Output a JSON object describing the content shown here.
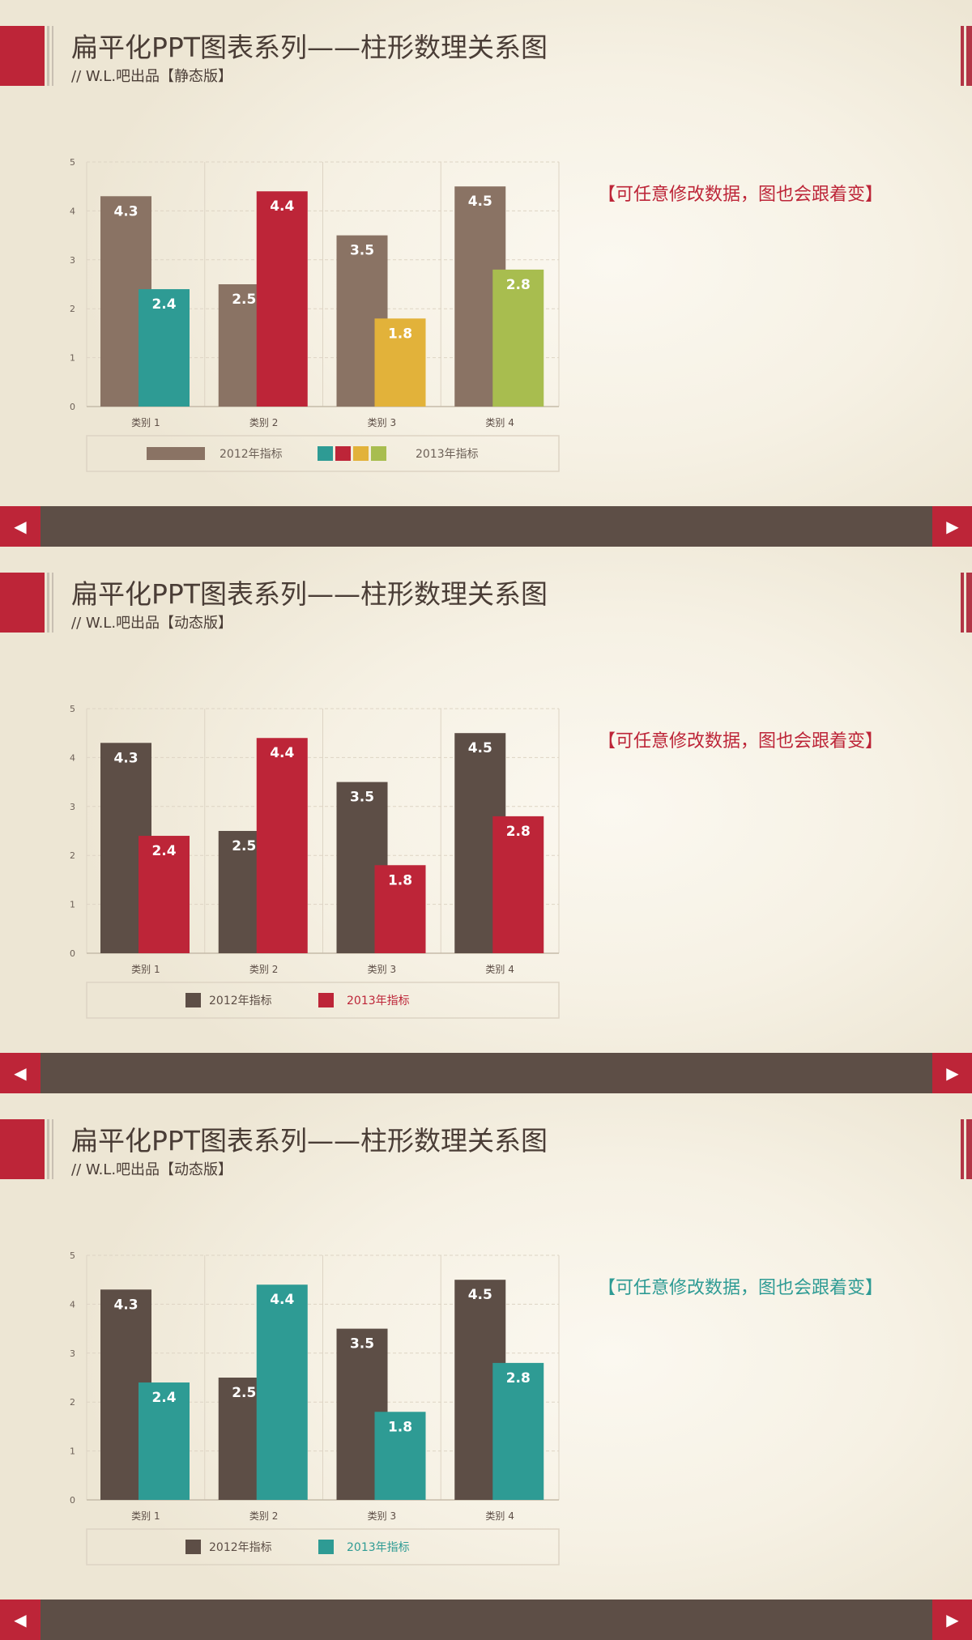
{
  "slides": [
    {
      "title": "扁平化PPT图表系列——柱形数理关系图",
      "subtitle": "// W.L.吧出品【静态版】",
      "note": "【可任意修改数据，图也会跟着变】",
      "note_color": "#bd2538",
      "chart_data": {
        "type": "bar",
        "categories": [
          "类别 1",
          "类别 2",
          "类别 3",
          "类别 4"
        ],
        "ylim": [
          0,
          5
        ],
        "yticks": [
          "0",
          "1",
          "2",
          "3",
          "4",
          "5"
        ],
        "grid": true,
        "legend_position": "bottom",
        "series": [
          {
            "name": "2012年指标",
            "values": [
              4.3,
              2.5,
              3.5,
              4.5
            ],
            "value_labels": [
              "4.3",
              "2.5",
              "3.5",
              "4.5"
            ],
            "colors": [
              "#8a7364",
              "#8a7364",
              "#8a7364",
              "#8a7364"
            ]
          },
          {
            "name": "2013年指标",
            "values": [
              2.4,
              4.4,
              1.8,
              2.8
            ],
            "value_labels": [
              "2.4",
              "4.4",
              "1.8",
              "2.8"
            ],
            "colors": [
              "#2e9b94",
              "#bd2538",
              "#e2b23a",
              "#a8bd4f"
            ]
          }
        ],
        "legend_text_color": "#6d6158"
      }
    },
    {
      "title": "扁平化PPT图表系列——柱形数理关系图",
      "subtitle": "// W.L.吧出品【动态版】",
      "note": "【可任意修改数据，图也会跟着变】",
      "note_color": "#bd2538",
      "chart_data": {
        "type": "bar",
        "categories": [
          "类别 1",
          "类别 2",
          "类别 3",
          "类别 4"
        ],
        "ylim": [
          0,
          5
        ],
        "yticks": [
          "0",
          "1",
          "2",
          "3",
          "4",
          "5"
        ],
        "grid": true,
        "legend_position": "bottom",
        "series": [
          {
            "name": "2012年指标",
            "values": [
              4.3,
              2.5,
              3.5,
              4.5
            ],
            "value_labels": [
              "4.3",
              "2.5",
              "3.5",
              "4.5"
            ],
            "colors": [
              "#5d4e46",
              "#5d4e46",
              "#5d4e46",
              "#5d4e46"
            ]
          },
          {
            "name": "2013年指标",
            "values": [
              2.4,
              4.4,
              1.8,
              2.8
            ],
            "value_labels": [
              "2.4",
              "4.4",
              "1.8",
              "2.8"
            ],
            "colors": [
              "#bd2538",
              "#bd2538",
              "#bd2538",
              "#bd2538"
            ]
          }
        ],
        "legend_text_color": "#bd2538"
      }
    },
    {
      "title": "扁平化PPT图表系列——柱形数理关系图",
      "subtitle": "// W.L.吧出品【动态版】",
      "note": "【可任意修改数据，图也会跟着变】",
      "note_color": "#2e9b94",
      "chart_data": {
        "type": "bar",
        "categories": [
          "类别 1",
          "类别 2",
          "类别 3",
          "类别 4"
        ],
        "ylim": [
          0,
          5
        ],
        "yticks": [
          "0",
          "1",
          "2",
          "3",
          "4",
          "5"
        ],
        "grid": true,
        "legend_position": "bottom",
        "series": [
          {
            "name": "2012年指标",
            "values": [
              4.3,
              2.5,
              3.5,
              4.5
            ],
            "value_labels": [
              "4.3",
              "2.5",
              "3.5",
              "4.5"
            ],
            "colors": [
              "#5d4e46",
              "#5d4e46",
              "#5d4e46",
              "#5d4e46"
            ]
          },
          {
            "name": "2013年指标",
            "values": [
              2.4,
              4.4,
              1.8,
              2.8
            ],
            "value_labels": [
              "2.4",
              "4.4",
              "1.8",
              "2.8"
            ],
            "colors": [
              "#2e9b94",
              "#2e9b94",
              "#2e9b94",
              "#2e9b94"
            ]
          }
        ],
        "legend_text_color": "#2e9b94"
      }
    }
  ],
  "nav": {
    "prev_icon": "triangle-left-icon",
    "next_icon": "triangle-right-icon",
    "prev_glyph": "◀",
    "next_glyph": "▶"
  }
}
